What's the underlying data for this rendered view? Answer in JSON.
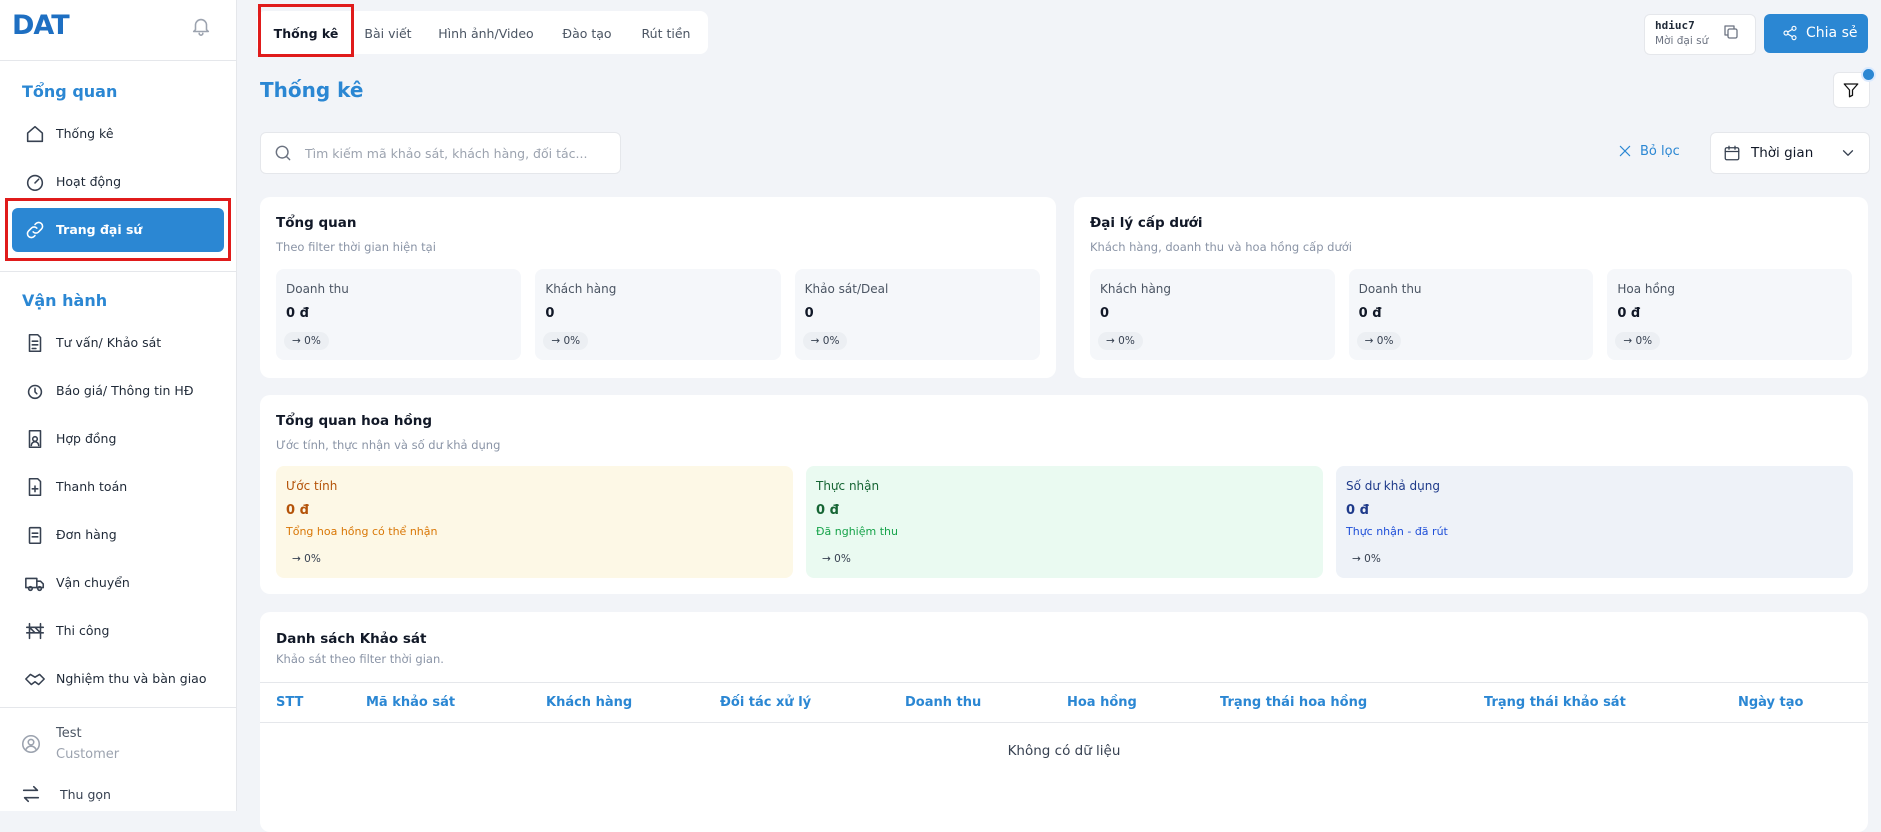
{
  "sidebar": {
    "logo": "DAT",
    "sections": [
      {
        "title": "Tổng quan",
        "items": [
          "Thống kê",
          "Hoạt động",
          "Trang đại sứ"
        ]
      },
      {
        "title": "Vận hành",
        "items": [
          "Tư vấn/ Khảo sát",
          "Báo giá/ Thông tin HĐ",
          "Hợp đồng",
          "Thanh toán",
          "Đơn hàng",
          "Vận chuyển",
          "Thi công",
          "Nghiệm thu và bàn giao"
        ]
      }
    ],
    "user": {
      "name": "Test",
      "role": "Customer"
    },
    "collapse": "Thu gọn"
  },
  "tabs": [
    "Thống kê",
    "Bài viết",
    "Hình ảnh/Video",
    "Đào tạo",
    "Rút tiền"
  ],
  "referral": {
    "code": "hdiuc7",
    "label": "Mời đại sứ"
  },
  "share": "Chia sẻ",
  "page_title": "Thống kê",
  "search_placeholder": "Tìm kiếm mã khảo sát, khách hàng, đối tác...",
  "clear_filter": "Bỏ lọc",
  "time_filter": "Thời gian",
  "overview": {
    "title": "Tổng quan",
    "subtitle": "Theo filter thời gian hiện tại",
    "cards": [
      {
        "label": "Doanh thu",
        "value": "0 đ",
        "change": "→ 0%"
      },
      {
        "label": "Khách hàng",
        "value": "0",
        "change": "→ 0%"
      },
      {
        "label": "Khảo sát/Deal",
        "value": "0",
        "change": "→ 0%"
      }
    ]
  },
  "sub_agents": {
    "title": "Đại lý cấp dưới",
    "subtitle": "Khách hàng, doanh thu và hoa hồng cấp dưới",
    "cards": [
      {
        "label": "Khách hàng",
        "value": "0",
        "change": "→ 0%"
      },
      {
        "label": "Doanh thu",
        "value": "0 đ",
        "change": "→ 0%"
      },
      {
        "label": "Hoa hồng",
        "value": "0 đ",
        "change": "→ 0%"
      }
    ]
  },
  "commission": {
    "title": "Tổng quan hoa hồng",
    "subtitle": "Ước tính, thực nhận và số dư khả dụng",
    "cards": [
      {
        "label": "Ước tính",
        "value": "0 đ",
        "note": "Tổng hoa hồng có thể nhận",
        "change": "→ 0%"
      },
      {
        "label": "Thực nhận",
        "value": "0 đ",
        "note": "Đã nghiệm thu",
        "change": "→ 0%"
      },
      {
        "label": "Số dư khả dụng",
        "value": "0 đ",
        "note": "Thực nhận - đã rút",
        "change": "→ 0%"
      }
    ]
  },
  "surveys": {
    "title": "Danh sách Khảo sát",
    "subtitle": "Khảo sát theo filter thời gian.",
    "columns": [
      "STT",
      "Mã khảo sát",
      "Khách hàng",
      "Đối tác xử lý",
      "Doanh thu",
      "Hoa hồng",
      "Trạng thái hoa hồng",
      "Trạng thái khảo sát",
      "Ngày tạo"
    ],
    "empty": "Không có dữ liệu"
  }
}
